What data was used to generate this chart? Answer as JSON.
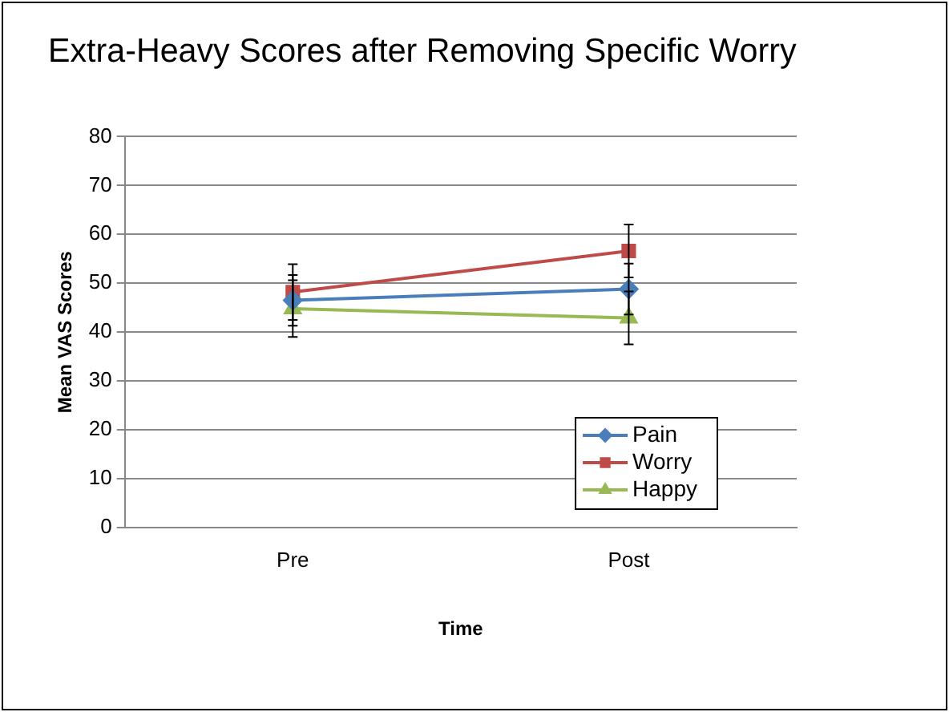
{
  "chart_data": {
    "type": "line",
    "title": "Extra-Heavy Scores after Removing Specific Worry",
    "xlabel": "Time",
    "ylabel": "Mean VAS Scores",
    "categories": [
      "Pre",
      "Post"
    ],
    "series": [
      {
        "name": "Pain",
        "color": "#4a7ebb",
        "marker": "diamond",
        "values": [
          46.5,
          48.8
        ],
        "errors": [
          5.2,
          5.2
        ]
      },
      {
        "name": "Worry",
        "color": "#be4b48",
        "marker": "square",
        "values": [
          48.2,
          56.6
        ],
        "errors": [
          5.7,
          5.4
        ]
      },
      {
        "name": "Happy",
        "color": "#98b954",
        "marker": "triangle",
        "values": [
          44.8,
          42.9
        ],
        "errors": [
          5.8,
          5.4
        ]
      }
    ],
    "ylim": [
      0,
      80
    ],
    "yticks": [
      0,
      10,
      20,
      30,
      40,
      50,
      60,
      70,
      80
    ],
    "grid": "y",
    "legend": "bottom right",
    "line_style": "solid"
  }
}
